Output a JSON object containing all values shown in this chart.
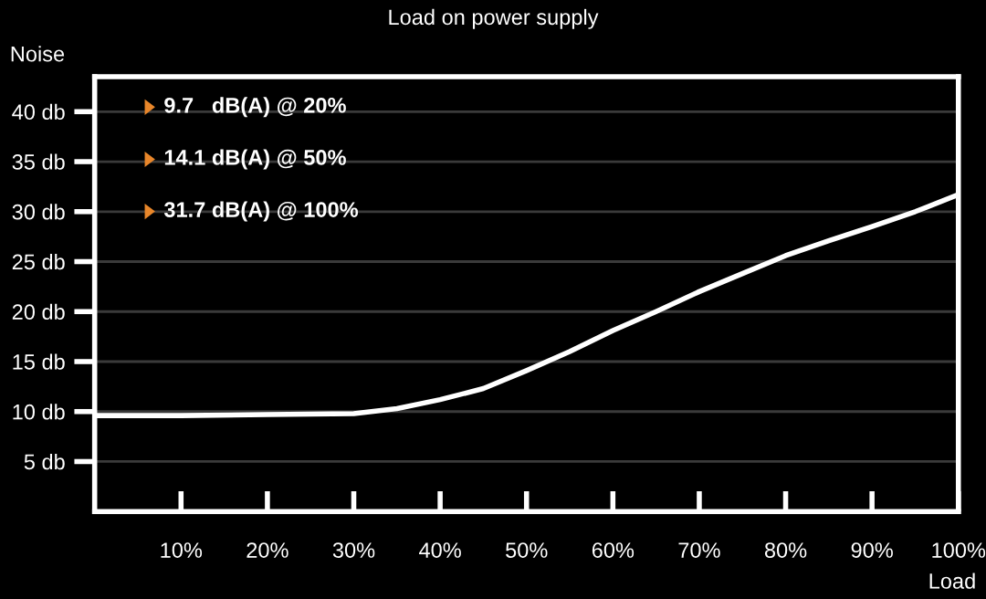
{
  "chart_data": {
    "type": "line",
    "title": "Load on power supply",
    "xlabel": "Load",
    "ylabel": "Noise",
    "x": [
      0,
      10,
      20,
      30,
      35,
      40,
      45,
      50,
      55,
      60,
      65,
      70,
      75,
      80,
      85,
      90,
      95,
      100
    ],
    "series": [
      {
        "color": "#ffffff",
        "values": [
          9.6,
          9.6,
          9.7,
          9.8,
          10.3,
          11.2,
          12.3,
          14.1,
          16,
          18.1,
          20,
          22,
          23.8,
          25.6,
          27.1,
          28.5,
          30,
          31.7
        ]
      }
    ],
    "xlim": [
      0,
      100
    ],
    "ylim": [
      0,
      43.5
    ],
    "xticks": [
      {
        "value": 10,
        "label": "10%"
      },
      {
        "value": 20,
        "label": "20%"
      },
      {
        "value": 30,
        "label": "30%"
      },
      {
        "value": 40,
        "label": "40%"
      },
      {
        "value": 50,
        "label": "50%"
      },
      {
        "value": 60,
        "label": "60%"
      },
      {
        "value": 70,
        "label": "70%"
      },
      {
        "value": 80,
        "label": "80%"
      },
      {
        "value": 90,
        "label": "90%"
      },
      {
        "value": 100,
        "label": "100%"
      }
    ],
    "yticks": [
      {
        "value": 5,
        "label": "5 db"
      },
      {
        "value": 10,
        "label": "10 db"
      },
      {
        "value": 15,
        "label": "15 db"
      },
      {
        "value": 20,
        "label": "20 db"
      },
      {
        "value": 25,
        "label": "25 db"
      },
      {
        "value": 30,
        "label": "30 db"
      },
      {
        "value": 35,
        "label": "35 db"
      },
      {
        "value": 40,
        "label": "40 db"
      }
    ],
    "grid": "y",
    "marker": "none",
    "line_style": "solid",
    "annotations": [
      "9.7   dB(A) @ 20%",
      "14.1 dB(A) @ 50%",
      "31.7 dB(A) @ 100%"
    ]
  }
}
